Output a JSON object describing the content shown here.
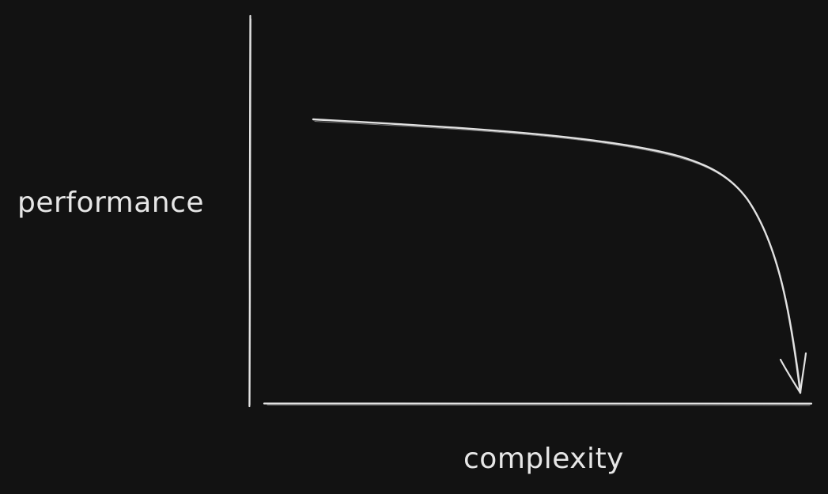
{
  "diagram": {
    "y_axis_label": "performance",
    "x_axis_label": "complexity",
    "background": "#121212",
    "ink_color": "#e2e2e2"
  }
}
